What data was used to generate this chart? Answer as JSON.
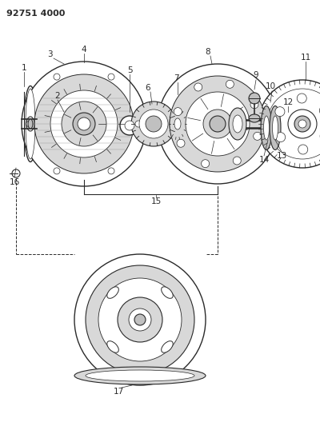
{
  "title": "92751 4000",
  "bg_color": "#ffffff",
  "line_color": "#2a2a2a",
  "gray_fill": "#d8d8d8",
  "mid_gray": "#c0c0c0",
  "dark_gray": "#a0a0a0"
}
